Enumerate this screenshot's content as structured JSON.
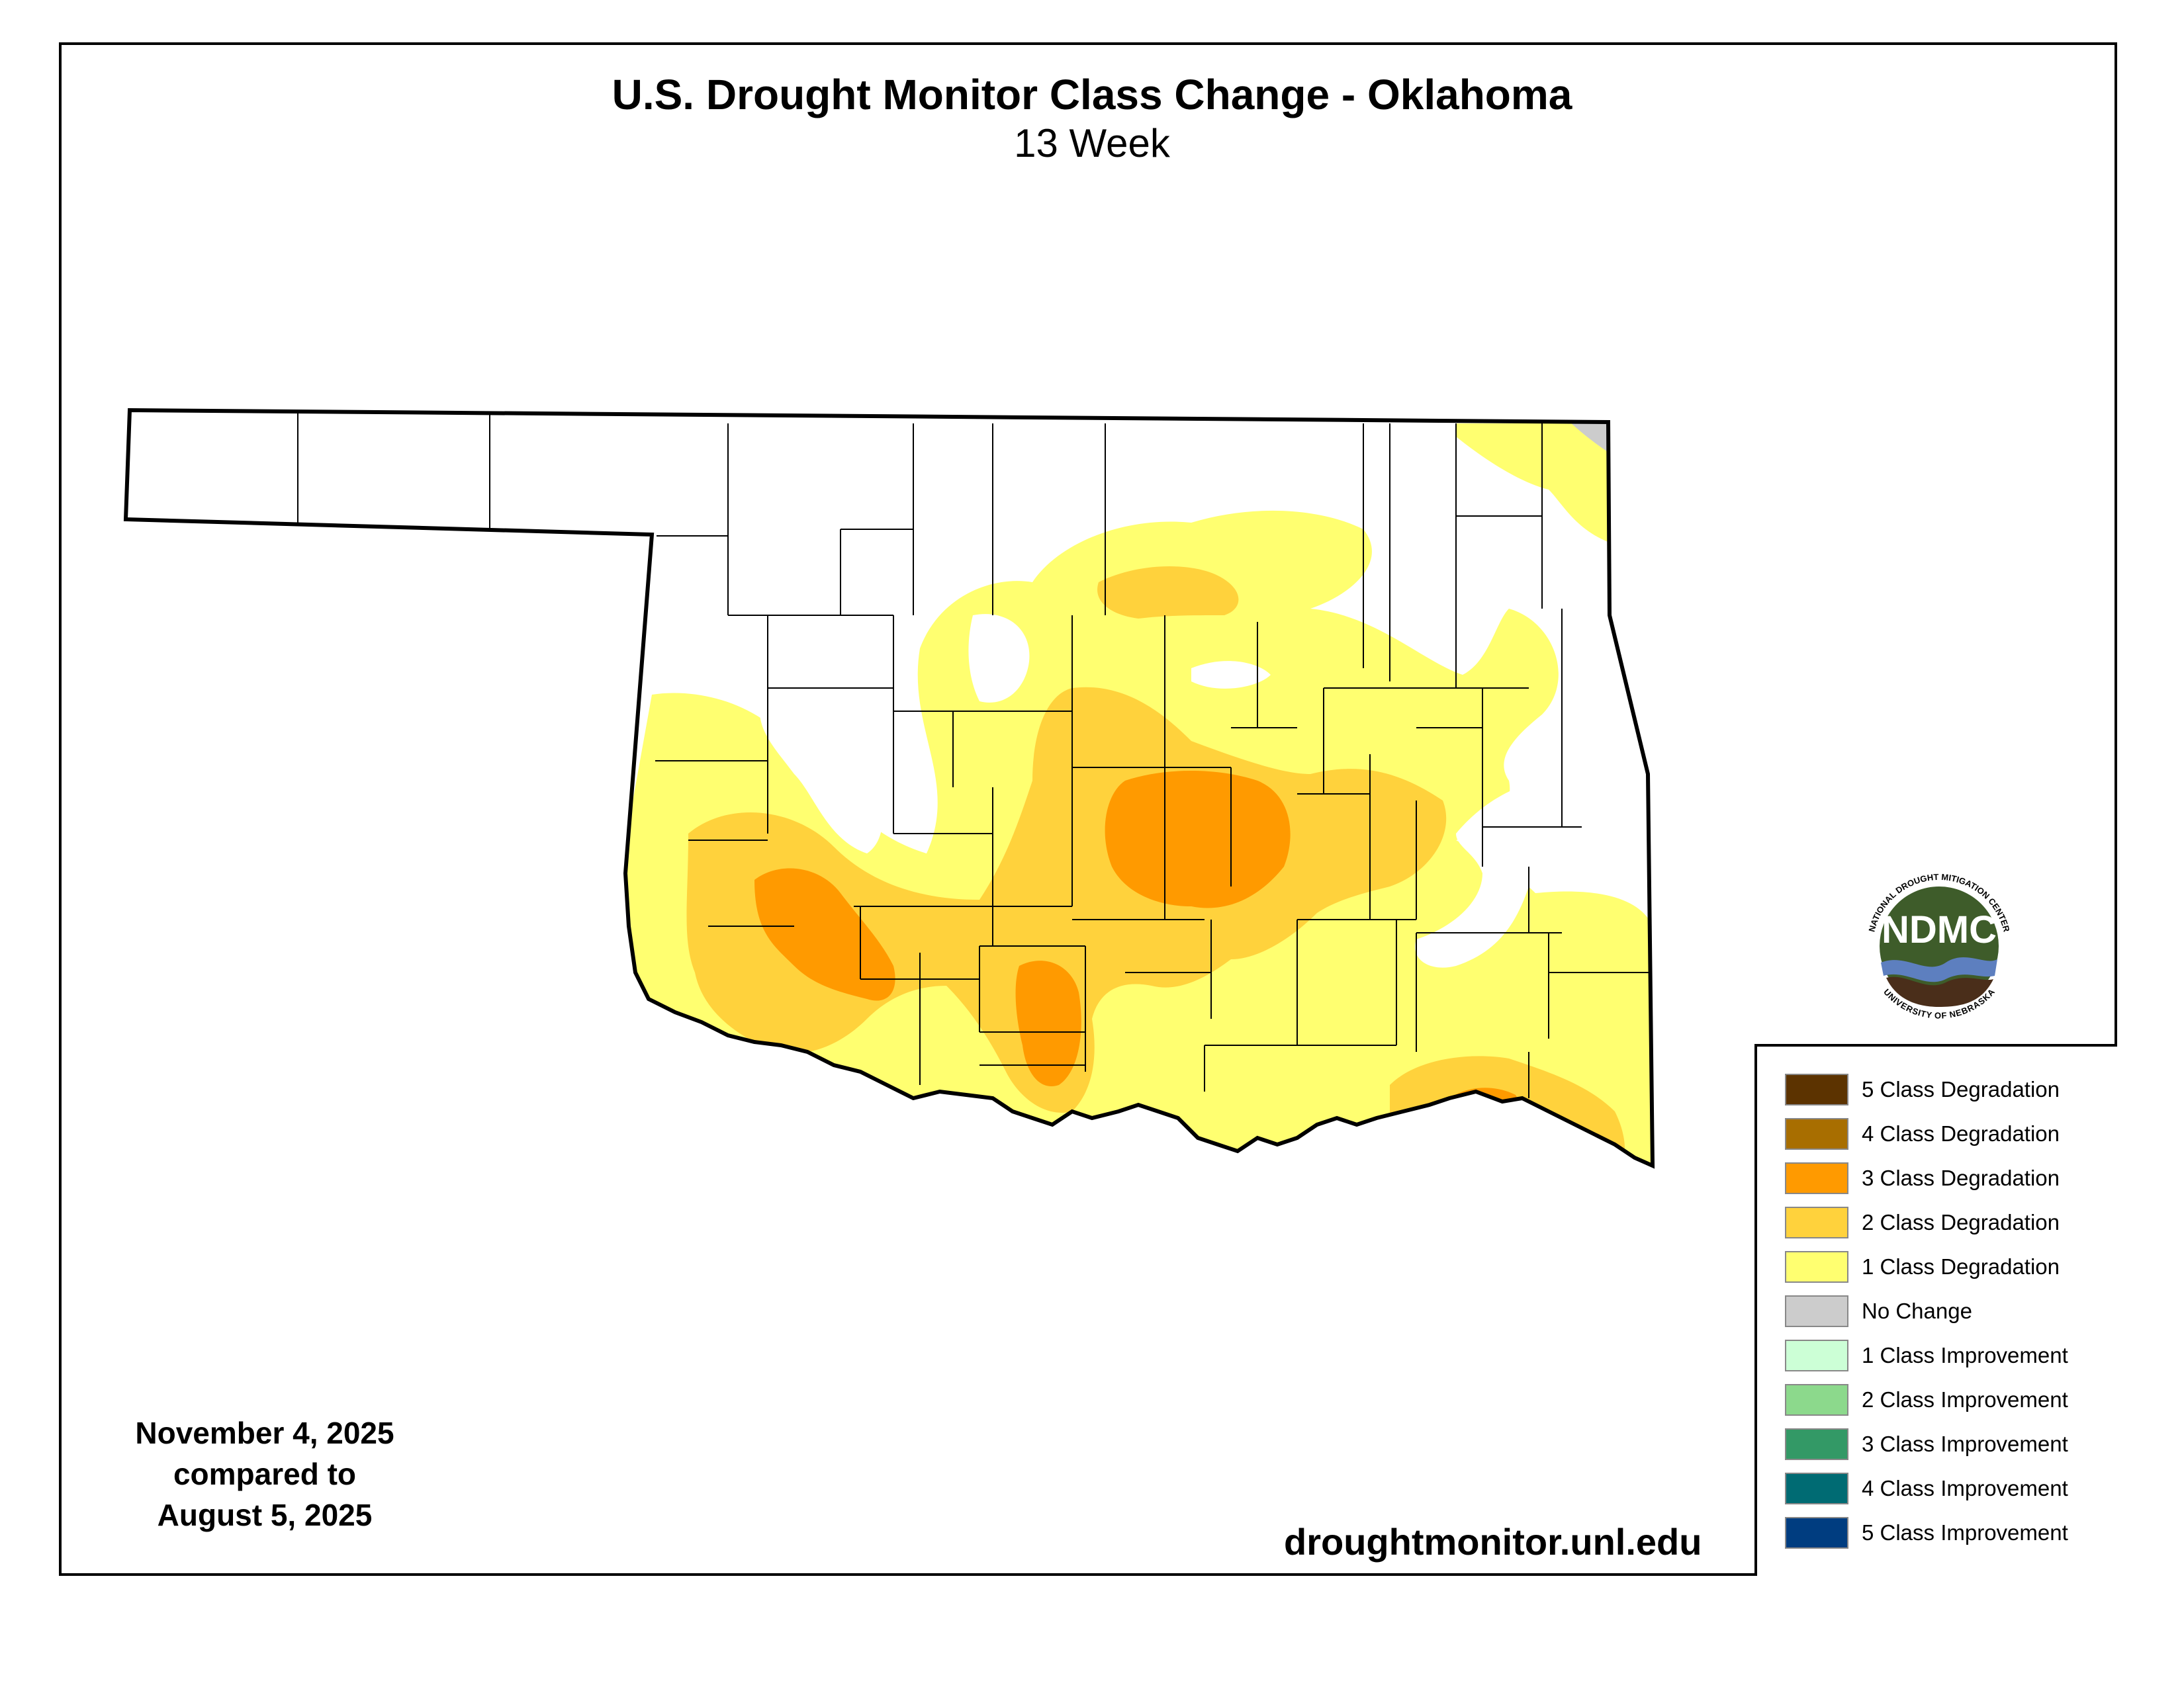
{
  "title": "U.S. Drought Monitor Class Change - Oklahoma",
  "subtitle": "13 Week",
  "date_block": {
    "line1": "November 4, 2025",
    "line2": "compared to",
    "line3": "August 5, 2025"
  },
  "url": "droughtmonitor.unl.edu",
  "logo": {
    "text": "NDMC",
    "ring_top": "NATIONAL DROUGHT MITIGATION CENTER",
    "ring_bottom": "UNIVERSITY OF NEBRASKA",
    "colors": {
      "green": "#3e5c2a",
      "blue": "#5d7fbf",
      "brown": "#4a2e1a"
    }
  },
  "legend": [
    {
      "label": "5 Class Degradation",
      "color": "#5c3300"
    },
    {
      "label": "4 Class Degradation",
      "color": "#a86e00"
    },
    {
      "label": "3 Class Degradation",
      "color": "#ff9a00"
    },
    {
      "label": "2 Class Degradation",
      "color": "#ffd23c"
    },
    {
      "label": "1 Class Degradation",
      "color": "#ffff70"
    },
    {
      "label": "No Change",
      "color": "#cccccc"
    },
    {
      "label": "1 Class Improvement",
      "color": "#ccffd6"
    },
    {
      "label": "2 Class Improvement",
      "color": "#8cd98c"
    },
    {
      "label": "3 Class Improvement",
      "color": "#339966"
    },
    {
      "label": "4 Class Improvement",
      "color": "#006b73"
    },
    {
      "label": "5 Class Improvement",
      "color": "#003d80"
    }
  ]
}
